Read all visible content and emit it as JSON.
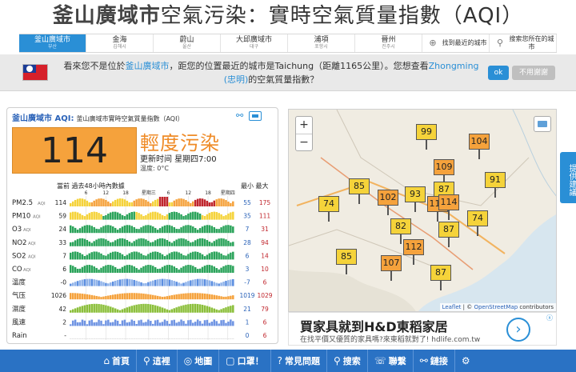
{
  "title": {
    "bold": "釜山廣域市",
    "rest": "空氣污染：實時空氣質量指數（AQI）"
  },
  "cities": [
    {
      "name": "釜山廣域市",
      "sub": "부산",
      "active": true
    },
    {
      "name": "金海",
      "sub": "김해시"
    },
    {
      "name": "蔚山",
      "sub": "울산"
    },
    {
      "name": "大邱廣域市",
      "sub": "대구"
    },
    {
      "name": "浦項",
      "sub": "포항시"
    },
    {
      "name": "晉州",
      "sub": "진주시"
    }
  ],
  "city_tools": {
    "nearest": "找到最近的城市",
    "search": "搜索您所在的城市"
  },
  "notice": {
    "p1": "看來您不是位於",
    "city_link": "釜山廣域市",
    "p2": "，距您的位置最近的城市是",
    "near_city": "Taichung",
    "p3": "（距離1165公里）。您想查看",
    "alt_link": "Zhongming",
    "alt_link2": "(忠明)",
    "p4": "的空氣質量指數？",
    "ok": "ok",
    "no": "不用謝謝"
  },
  "card": {
    "header": "釜山廣域市 AQI:",
    "header_sub": "釜山廣域市實時空氣質量指數（AQI）",
    "aqi": "114",
    "level": "輕度污染",
    "update": "更新时间 星期四7:00",
    "temp": "温度: 0°C",
    "history_title": "當前 過去48小時內數據",
    "min_label": "最小",
    "max_label": "最大",
    "ticks": [
      "6",
      "12",
      "18",
      "星期三",
      "6",
      "12",
      "18",
      "星期四"
    ],
    "rows": [
      {
        "name": "PM2.5",
        "unit": "AQI",
        "cur": "114",
        "min": "55",
        "max": "175"
      },
      {
        "name": "PM10",
        "unit": "AQI",
        "cur": "59",
        "min": "35",
        "max": "111"
      },
      {
        "name": "O3",
        "unit": "AQI",
        "cur": "24",
        "min": "7",
        "max": "31"
      },
      {
        "name": "NO2",
        "unit": "AQI",
        "cur": "33",
        "min": "28",
        "max": "94"
      },
      {
        "name": "SO2",
        "unit": "AQI",
        "cur": "7",
        "min": "6",
        "max": "14"
      },
      {
        "name": "CO",
        "unit": "AQI",
        "cur": "6",
        "min": "3",
        "max": "10"
      },
      {
        "name": "溫度",
        "unit": "",
        "cur": "-0",
        "min": "-7",
        "max": "6"
      },
      {
        "name": "气压",
        "unit": "",
        "cur": "1026",
        "min": "1019",
        "max": "1029"
      },
      {
        "name": "濕度",
        "unit": "",
        "cur": "42",
        "min": "21",
        "max": "79"
      },
      {
        "name": "風速",
        "unit": "",
        "cur": "2",
        "min": "1",
        "max": "6"
      },
      {
        "name": "Rain",
        "unit": "",
        "cur": "-",
        "min": "0",
        "max": "6"
      }
    ]
  },
  "map": {
    "zoom_in": "+",
    "zoom_out": "−",
    "attr_leaflet": "Leaflet",
    "attr_sep": " | © ",
    "attr_osm": "OpenStreetMap",
    "attr_tail": " contributors",
    "markers": [
      {
        "v": "99",
        "c": "y"
      },
      {
        "v": "104",
        "c": "o"
      },
      {
        "v": "109",
        "c": "o"
      },
      {
        "v": "91",
        "c": "y"
      },
      {
        "v": "85",
        "c": "y"
      },
      {
        "v": "87",
        "c": "y"
      },
      {
        "v": "74",
        "c": "y"
      },
      {
        "v": "102",
        "c": "o"
      },
      {
        "v": "93",
        "c": "y"
      },
      {
        "v": "114",
        "c": "o"
      },
      {
        "v": "114",
        "c": "o"
      },
      {
        "v": "82",
        "c": "y"
      },
      {
        "v": "87",
        "c": "y"
      },
      {
        "v": "74",
        "c": "y"
      },
      {
        "v": "85",
        "c": "y"
      },
      {
        "v": "112",
        "c": "o"
      },
      {
        "v": "107",
        "c": "o"
      },
      {
        "v": "87",
        "c": "y"
      }
    ]
  },
  "ad": {
    "title": "買家具就到H&D東稻家居",
    "sub": "在找平價又優質的家具嗎?來東稻就對了!",
    "domain": "hdlife.com.tw"
  },
  "sidetab": "提供建議",
  "nav": [
    {
      "icon": "⌂",
      "label": "首頁",
      "name": "home"
    },
    {
      "icon": "⚲",
      "label": "這裡",
      "name": "here"
    },
    {
      "icon": "◎",
      "label": "地圖",
      "name": "map"
    },
    {
      "icon": "▢",
      "label": "口罩！",
      "name": "mask"
    },
    {
      "icon": "?",
      "label": "常見問題",
      "name": "faq"
    },
    {
      "icon": "⚲",
      "label": "搜索",
      "name": "search"
    },
    {
      "icon": "☏",
      "label": "聯繫",
      "name": "contact"
    },
    {
      "icon": "⚯",
      "label": "鏈接",
      "name": "links"
    },
    {
      "icon": "⚙",
      "label": "",
      "name": "settings"
    }
  ]
}
